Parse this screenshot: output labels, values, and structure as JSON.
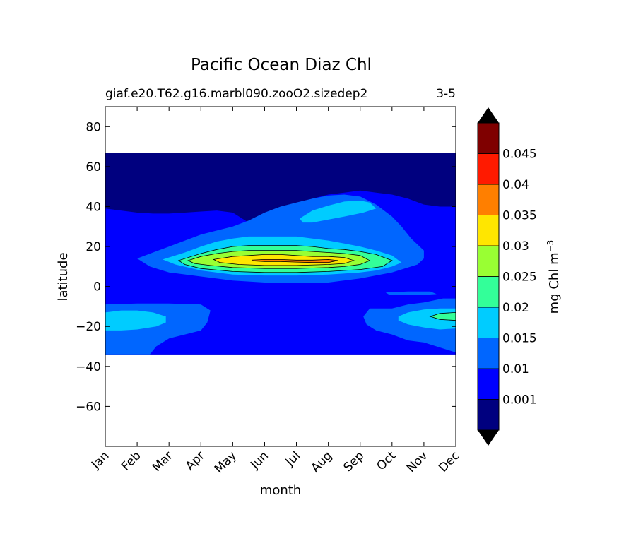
{
  "chart_data": {
    "type": "heatmap",
    "title": "Pacific Ocean Diaz Chl",
    "subtitle_left": "giaf.e20.T62.g16.marbl090.zooO2.sizedep2",
    "subtitle_right": "3-5",
    "xlabel": "month",
    "ylabel": "latitude",
    "x_categories": [
      "Jan",
      "Feb",
      "Mar",
      "Apr",
      "May",
      "Jun",
      "Jul",
      "Aug",
      "Sep",
      "Oct",
      "Nov",
      "Dec"
    ],
    "xlim": [
      0,
      11
    ],
    "ylim": [
      -80,
      90
    ],
    "y_ticks": [
      80,
      60,
      40,
      20,
      0,
      -20,
      -40,
      -60
    ],
    "y_tick_labels": [
      "80",
      "60",
      "40",
      "20",
      "0",
      "−20",
      "−40",
      "−60"
    ],
    "data_lat_range": [
      -34,
      67
    ],
    "colorbar": {
      "label": "mg Chl m",
      "label_exponent": "−3",
      "levels": [
        0.001,
        0.01,
        0.015,
        0.02,
        0.025,
        0.03,
        0.035,
        0.04,
        0.045
      ],
      "tick_labels": [
        "0.001",
        "0.01",
        "0.015",
        "0.02",
        "0.025",
        "0.03",
        "0.035",
        "0.04",
        "0.045"
      ],
      "colors": [
        "#00007f",
        "#0000ff",
        "#0066ff",
        "#00ccff",
        "#33ff99",
        "#99ff33",
        "#ffe600",
        "#ff7f00",
        "#ff1a00",
        "#7f0000"
      ],
      "extend": "both"
    },
    "regions": [
      {
        "level": 1,
        "color": "#0000ff",
        "pts": [
          [
            0,
            39
          ],
          [
            0.5,
            38
          ],
          [
            1,
            37
          ],
          [
            1.5,
            36.5
          ],
          [
            2,
            36.5
          ],
          [
            2.5,
            37
          ],
          [
            3,
            37.5
          ],
          [
            3.5,
            38
          ],
          [
            4,
            37
          ],
          [
            4.5,
            32
          ],
          [
            5,
            28
          ],
          [
            5.5,
            36
          ],
          [
            6,
            40
          ],
          [
            6.5,
            44
          ],
          [
            7,
            46
          ],
          [
            7.5,
            47
          ],
          [
            8,
            48
          ],
          [
            8.5,
            47
          ],
          [
            9,
            46
          ],
          [
            9.5,
            44
          ],
          [
            10,
            41
          ],
          [
            10.5,
            40
          ],
          [
            11,
            40
          ],
          [
            11,
            -34
          ],
          [
            0,
            -34
          ]
        ]
      },
      {
        "level": 2,
        "color": "#0066ff",
        "pts": [
          [
            1,
            14
          ],
          [
            1.5,
            17
          ],
          [
            2,
            20
          ],
          [
            2.5,
            23
          ],
          [
            3,
            26
          ],
          [
            3.5,
            28
          ],
          [
            4,
            30
          ],
          [
            4.5,
            33
          ],
          [
            5,
            37
          ],
          [
            5.5,
            40
          ],
          [
            6,
            42
          ],
          [
            6.5,
            44
          ],
          [
            7,
            45.5
          ],
          [
            7.5,
            46
          ],
          [
            8,
            45
          ],
          [
            8.5,
            41
          ],
          [
            9,
            35
          ],
          [
            9.3,
            30
          ],
          [
            9.6,
            24
          ],
          [
            10,
            18
          ],
          [
            10,
            14
          ],
          [
            9.8,
            11
          ],
          [
            9,
            7
          ],
          [
            8,
            4
          ],
          [
            7,
            2
          ],
          [
            6,
            2
          ],
          [
            5,
            2
          ],
          [
            4,
            3
          ],
          [
            3,
            5
          ],
          [
            2,
            7
          ],
          [
            1.4,
            10
          ]
        ]
      },
      {
        "level": 2,
        "color": "#0066ff",
        "pts": [
          [
            0,
            -9
          ],
          [
            1,
            -8.5
          ],
          [
            2,
            -8.5
          ],
          [
            3,
            -9
          ],
          [
            3.3,
            -12
          ],
          [
            3.2,
            -18
          ],
          [
            3,
            -22
          ],
          [
            2.5,
            -24
          ],
          [
            2,
            -26
          ],
          [
            1.6,
            -30
          ],
          [
            1.4,
            -34
          ],
          [
            0,
            -34
          ]
        ]
      },
      {
        "level": 2,
        "color": "#0066ff",
        "pts": [
          [
            8.3,
            -11
          ],
          [
            9,
            -11
          ],
          [
            9.5,
            -9
          ],
          [
            10,
            -8
          ],
          [
            10.6,
            -6
          ],
          [
            11,
            -6
          ],
          [
            11,
            -33
          ],
          [
            10.6,
            -31
          ],
          [
            10,
            -28
          ],
          [
            9.5,
            -27
          ],
          [
            9,
            -24
          ],
          [
            8.5,
            -22
          ],
          [
            8.2,
            -19
          ],
          [
            8.1,
            -15
          ]
        ]
      },
      {
        "level": 2,
        "color": "#0066ff",
        "pts": [
          [
            8.8,
            -3
          ],
          [
            9.5,
            -2.5
          ],
          [
            10.2,
            -2.5
          ],
          [
            10.4,
            -3.8
          ],
          [
            10,
            -4.2
          ],
          [
            9.5,
            -4.2
          ],
          [
            8.9,
            -4
          ]
        ]
      },
      {
        "level": 3,
        "color": "#00ccff",
        "pts": [
          [
            1.8,
            13.5
          ],
          [
            2.5,
            17
          ],
          [
            3,
            20
          ],
          [
            3.5,
            22.5
          ],
          [
            4,
            24
          ],
          [
            4.5,
            25
          ],
          [
            5,
            25
          ],
          [
            5.5,
            25
          ],
          [
            6,
            25
          ],
          [
            6.5,
            24
          ],
          [
            7,
            23
          ],
          [
            7.5,
            21.5
          ],
          [
            8,
            20
          ],
          [
            8.5,
            18
          ],
          [
            9,
            15.5
          ],
          [
            9.3,
            12
          ],
          [
            9,
            10
          ],
          [
            8.5,
            8
          ],
          [
            8,
            7
          ],
          [
            7,
            6
          ],
          [
            6,
            5.5
          ],
          [
            5,
            5.5
          ],
          [
            4,
            6
          ],
          [
            3,
            8
          ],
          [
            2.2,
            11
          ]
        ]
      },
      {
        "level": 3,
        "color": "#00ccff",
        "pts": [
          [
            6.1,
            34
          ],
          [
            6.5,
            38
          ],
          [
            7,
            40.5
          ],
          [
            7.5,
            42.5
          ],
          [
            8,
            43
          ],
          [
            8.3,
            42
          ],
          [
            8.5,
            39
          ],
          [
            8.1,
            37
          ],
          [
            7.5,
            35
          ],
          [
            7,
            33.5
          ],
          [
            6.5,
            32
          ],
          [
            6.2,
            32
          ]
        ]
      },
      {
        "level": 3,
        "color": "#00ccff",
        "pts": [
          [
            0,
            -13
          ],
          [
            0.5,
            -12
          ],
          [
            1,
            -12
          ],
          [
            1.5,
            -13
          ],
          [
            1.9,
            -15
          ],
          [
            1.9,
            -18
          ],
          [
            1.6,
            -20
          ],
          [
            1,
            -21.5
          ],
          [
            0.5,
            -22
          ],
          [
            0,
            -22
          ]
        ]
      },
      {
        "level": 3,
        "color": "#00ccff",
        "pts": [
          [
            9.2,
            -15
          ],
          [
            9.5,
            -13
          ],
          [
            10,
            -11.5
          ],
          [
            10.5,
            -11
          ],
          [
            11,
            -11
          ],
          [
            11,
            -21
          ],
          [
            10.5,
            -21.5
          ],
          [
            10,
            -20.5
          ],
          [
            9.5,
            -19
          ],
          [
            9.2,
            -17
          ]
        ]
      },
      {
        "level": 4,
        "color": "#33ff99",
        "pts": [
          [
            2.3,
            13
          ],
          [
            3,
            16.5
          ],
          [
            3.5,
            18.5
          ],
          [
            4,
            20
          ],
          [
            4.5,
            20.5
          ],
          [
            5,
            20.5
          ],
          [
            5.5,
            20.5
          ],
          [
            6,
            20.5
          ],
          [
            6.5,
            20
          ],
          [
            7,
            19
          ],
          [
            7.5,
            18.5
          ],
          [
            8,
            17.5
          ],
          [
            8.5,
            16
          ],
          [
            9,
            13
          ],
          [
            8.7,
            10
          ],
          [
            8,
            8.5
          ],
          [
            7,
            7.5
          ],
          [
            6,
            7
          ],
          [
            5,
            7
          ],
          [
            4,
            7.5
          ],
          [
            3,
            9
          ],
          [
            2.5,
            11
          ]
        ]
      },
      {
        "level": 4,
        "color": "#33ff99",
        "pts": [
          [
            10.2,
            -15
          ],
          [
            10.5,
            -13.5
          ],
          [
            11,
            -13
          ],
          [
            11,
            -17
          ],
          [
            10.5,
            -16.5
          ]
        ]
      },
      {
        "level": 5,
        "color": "#99ff33",
        "pts": [
          [
            2.6,
            13
          ],
          [
            3,
            15
          ],
          [
            3.5,
            16.5
          ],
          [
            4,
            17.5
          ],
          [
            4.5,
            18
          ],
          [
            5,
            18
          ],
          [
            5.5,
            18
          ],
          [
            6,
            18
          ],
          [
            6.5,
            17.5
          ],
          [
            7,
            17
          ],
          [
            7.5,
            16.5
          ],
          [
            8,
            15.5
          ],
          [
            8.3,
            13
          ],
          [
            8,
            11
          ],
          [
            7.5,
            10
          ],
          [
            7,
            9.5
          ],
          [
            6,
            9
          ],
          [
            5,
            9
          ],
          [
            4,
            9.5
          ],
          [
            3.3,
            10.5
          ],
          [
            2.8,
            11.5
          ]
        ]
      },
      {
        "level": 6,
        "color": "#ffe600",
        "pts": [
          [
            3.4,
            13.5
          ],
          [
            4,
            15
          ],
          [
            4.5,
            15.5
          ],
          [
            5,
            16
          ],
          [
            5.5,
            16
          ],
          [
            6,
            15.5
          ],
          [
            6.5,
            15
          ],
          [
            7,
            15
          ],
          [
            7.5,
            14.5
          ],
          [
            7.8,
            13
          ],
          [
            7.5,
            11.5
          ],
          [
            7,
            11
          ],
          [
            6,
            10.5
          ],
          [
            5,
            10.5
          ],
          [
            4.2,
            11
          ],
          [
            3.6,
            12
          ]
        ]
      },
      {
        "level": 7,
        "color": "#ff7f00",
        "pts": [
          [
            4.6,
            13.2
          ],
          [
            5,
            13.5
          ],
          [
            5.5,
            13.5
          ],
          [
            6,
            13.2
          ],
          [
            6.5,
            13.2
          ],
          [
            7,
            13.5
          ],
          [
            7.3,
            13
          ],
          [
            7,
            12
          ],
          [
            6.5,
            12
          ],
          [
            6,
            12.2
          ],
          [
            5.5,
            12.5
          ],
          [
            5,
            12.5
          ],
          [
            4.6,
            12.8
          ]
        ]
      }
    ]
  }
}
